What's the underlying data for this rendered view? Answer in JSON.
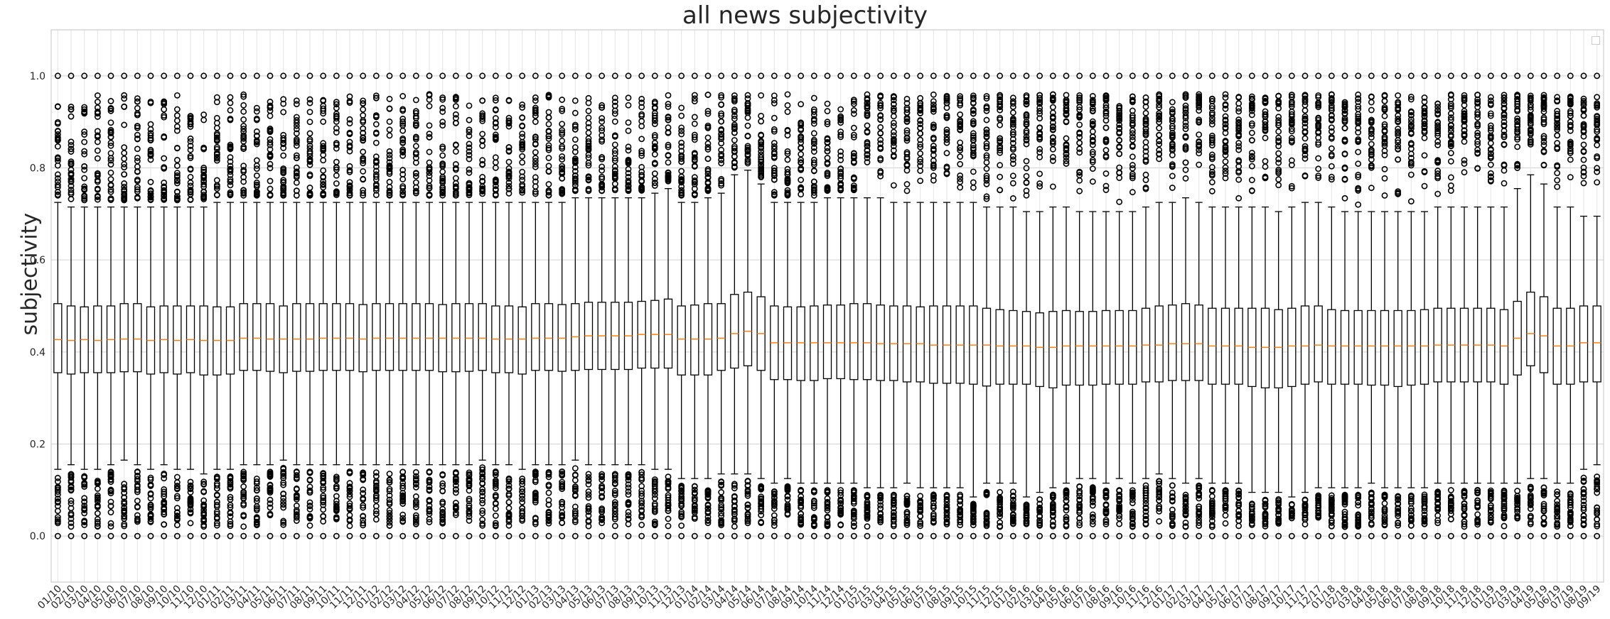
{
  "chart_data": {
    "type": "boxplot",
    "title": "all news subjectivity",
    "xlabel": "",
    "ylabel": "subjectivity",
    "ylim": [
      -0.1,
      1.1
    ],
    "yticks": [
      "0.0",
      "0.2",
      "0.4",
      "0.6",
      "0.8",
      "1.0"
    ],
    "grid": true,
    "legend": "top-right, empty",
    "colors": {
      "box": "#000000",
      "median": "#ff7f0e",
      "grid": "#d3d3d3",
      "axes_edge": "#cccccc",
      "text": "#262626"
    },
    "categories": [
      "01/10",
      "02/10",
      "03/10",
      "04/10",
      "05/10",
      "06/10",
      "07/10",
      "08/10",
      "09/10",
      "10/10",
      "11/10",
      "12/10",
      "01/11",
      "02/11",
      "03/11",
      "04/11",
      "05/11",
      "06/11",
      "07/11",
      "08/11",
      "09/11",
      "10/11",
      "11/11",
      "12/11",
      "01/12",
      "02/12",
      "03/12",
      "04/12",
      "05/12",
      "06/12",
      "07/12",
      "08/12",
      "09/12",
      "10/12",
      "11/12",
      "12/12",
      "01/13",
      "02/13",
      "03/13",
      "04/13",
      "05/13",
      "06/13",
      "07/13",
      "08/13",
      "09/13",
      "10/13",
      "11/13",
      "12/13",
      "01/14",
      "02/14",
      "03/14",
      "04/14",
      "05/14",
      "06/14",
      "07/14",
      "08/14",
      "09/14",
      "10/14",
      "11/14",
      "12/14",
      "01/15",
      "02/15",
      "03/15",
      "04/15",
      "05/15",
      "06/15",
      "07/15",
      "08/15",
      "09/15",
      "10/15",
      "11/15",
      "12/15",
      "01/16",
      "02/16",
      "03/16",
      "04/16",
      "05/16",
      "06/16",
      "07/16",
      "08/16",
      "09/16",
      "10/16",
      "11/16",
      "12/16",
      "01/17",
      "02/17",
      "03/17",
      "04/17",
      "05/17",
      "06/17",
      "07/17",
      "08/17",
      "09/17",
      "10/17",
      "11/17",
      "12/17",
      "01/18",
      "02/18",
      "03/18",
      "04/18",
      "05/18",
      "06/18",
      "07/18",
      "08/18",
      "09/18",
      "10/18",
      "11/18",
      "12/18",
      "01/19",
      "02/19",
      "03/19",
      "04/19",
      "05/19",
      "06/19",
      "07/19",
      "08/19",
      "09/19"
    ],
    "medians": [
      0.427,
      0.425,
      0.427,
      0.425,
      0.427,
      0.428,
      0.428,
      0.425,
      0.427,
      0.425,
      0.427,
      0.425,
      0.425,
      0.425,
      0.43,
      0.43,
      0.428,
      0.428,
      0.428,
      0.428,
      0.43,
      0.43,
      0.43,
      0.428,
      0.43,
      0.43,
      0.43,
      0.43,
      0.43,
      0.43,
      0.43,
      0.43,
      0.43,
      0.428,
      0.428,
      0.428,
      0.43,
      0.43,
      0.43,
      0.433,
      0.435,
      0.435,
      0.435,
      0.435,
      0.438,
      0.438,
      0.438,
      0.428,
      0.428,
      0.428,
      0.43,
      0.44,
      0.445,
      0.44,
      0.42,
      0.42,
      0.42,
      0.42,
      0.42,
      0.42,
      0.42,
      0.42,
      0.418,
      0.418,
      0.418,
      0.418,
      0.415,
      0.415,
      0.415,
      0.415,
      0.415,
      0.413,
      0.413,
      0.413,
      0.41,
      0.41,
      0.413,
      0.413,
      0.413,
      0.413,
      0.413,
      0.413,
      0.415,
      0.415,
      0.418,
      0.418,
      0.418,
      0.413,
      0.413,
      0.413,
      0.41,
      0.41,
      0.41,
      0.413,
      0.413,
      0.415,
      0.413,
      0.413,
      0.413,
      0.413,
      0.413,
      0.413,
      0.413,
      0.413,
      0.415,
      0.415,
      0.415,
      0.415,
      0.415,
      0.413,
      0.43,
      0.44,
      0.435,
      0.413,
      0.413,
      0.42,
      0.42
    ],
    "q1": [
      0.355,
      0.352,
      0.355,
      0.355,
      0.355,
      0.357,
      0.357,
      0.352,
      0.355,
      0.352,
      0.355,
      0.35,
      0.35,
      0.352,
      0.36,
      0.36,
      0.358,
      0.355,
      0.358,
      0.358,
      0.36,
      0.36,
      0.36,
      0.357,
      0.36,
      0.36,
      0.36,
      0.36,
      0.36,
      0.357,
      0.357,
      0.358,
      0.36,
      0.355,
      0.355,
      0.352,
      0.36,
      0.36,
      0.358,
      0.36,
      0.362,
      0.362,
      0.362,
      0.362,
      0.365,
      0.365,
      0.365,
      0.35,
      0.35,
      0.35,
      0.36,
      0.365,
      0.37,
      0.36,
      0.34,
      0.34,
      0.338,
      0.338,
      0.342,
      0.342,
      0.34,
      0.34,
      0.338,
      0.338,
      0.335,
      0.335,
      0.332,
      0.332,
      0.332,
      0.33,
      0.326,
      0.33,
      0.33,
      0.33,
      0.325,
      0.322,
      0.328,
      0.328,
      0.328,
      0.33,
      0.33,
      0.33,
      0.335,
      0.335,
      0.338,
      0.338,
      0.338,
      0.33,
      0.33,
      0.33,
      0.325,
      0.322,
      0.322,
      0.325,
      0.33,
      0.335,
      0.33,
      0.33,
      0.33,
      0.328,
      0.328,
      0.325,
      0.328,
      0.33,
      0.335,
      0.335,
      0.335,
      0.335,
      0.335,
      0.33,
      0.35,
      0.37,
      0.355,
      0.33,
      0.33,
      0.335,
      0.335
    ],
    "q3": [
      0.505,
      0.5,
      0.498,
      0.5,
      0.5,
      0.505,
      0.505,
      0.498,
      0.5,
      0.5,
      0.5,
      0.5,
      0.498,
      0.498,
      0.505,
      0.505,
      0.505,
      0.5,
      0.505,
      0.505,
      0.505,
      0.505,
      0.505,
      0.503,
      0.505,
      0.505,
      0.505,
      0.505,
      0.505,
      0.503,
      0.505,
      0.505,
      0.505,
      0.5,
      0.5,
      0.498,
      0.505,
      0.505,
      0.503,
      0.505,
      0.508,
      0.508,
      0.508,
      0.508,
      0.51,
      0.512,
      0.515,
      0.5,
      0.502,
      0.505,
      0.505,
      0.525,
      0.53,
      0.52,
      0.5,
      0.498,
      0.498,
      0.5,
      0.502,
      0.502,
      0.505,
      0.505,
      0.502,
      0.5,
      0.5,
      0.498,
      0.5,
      0.5,
      0.5,
      0.5,
      0.495,
      0.492,
      0.49,
      0.488,
      0.485,
      0.488,
      0.49,
      0.488,
      0.488,
      0.49,
      0.49,
      0.49,
      0.495,
      0.5,
      0.502,
      0.505,
      0.502,
      0.495,
      0.495,
      0.495,
      0.495,
      0.495,
      0.492,
      0.495,
      0.5,
      0.5,
      0.492,
      0.49,
      0.49,
      0.49,
      0.49,
      0.49,
      0.49,
      0.492,
      0.495,
      0.495,
      0.495,
      0.495,
      0.495,
      0.492,
      0.51,
      0.53,
      0.52,
      0.495,
      0.495,
      0.5,
      0.5
    ],
    "whisker_low_min": 0.0,
    "whisker_high_max": 1.0,
    "upper_outlier_start": [
      0.74,
      0.73,
      0.73,
      0.73,
      0.73,
      0.73,
      0.73,
      0.73,
      0.73,
      0.73,
      0.73,
      0.73,
      0.74,
      0.74,
      0.74,
      0.74,
      0.74,
      0.74,
      0.74,
      0.74,
      0.74,
      0.74,
      0.74,
      0.74,
      0.74,
      0.74,
      0.74,
      0.74,
      0.74,
      0.74,
      0.74,
      0.74,
      0.74,
      0.74,
      0.74,
      0.74,
      0.74,
      0.74,
      0.74,
      0.75,
      0.75,
      0.75,
      0.75,
      0.75,
      0.75,
      0.76,
      0.77,
      0.74,
      0.74,
      0.75,
      0.76,
      0.8,
      0.81,
      0.78,
      0.74,
      0.74,
      0.74,
      0.74,
      0.75,
      0.75,
      0.75,
      0.75,
      0.75,
      0.74,
      0.74,
      0.74,
      0.74,
      0.74,
      0.74,
      0.74,
      0.73,
      0.73,
      0.73,
      0.72,
      0.72,
      0.73,
      0.73,
      0.72,
      0.72,
      0.72,
      0.72,
      0.72,
      0.73,
      0.74,
      0.74,
      0.75,
      0.74,
      0.73,
      0.73,
      0.73,
      0.73,
      0.73,
      0.72,
      0.73,
      0.74,
      0.74,
      0.73,
      0.72,
      0.72,
      0.72,
      0.72,
      0.72,
      0.72,
      0.72,
      0.73,
      0.73,
      0.73,
      0.73,
      0.73,
      0.73,
      0.77,
      0.8,
      0.78,
      0.73,
      0.73,
      0.71,
      0.71
    ],
    "lower_outlier_end": [
      0.13,
      0.14,
      0.13,
      0.13,
      0.14,
      0.15,
      0.14,
      0.13,
      0.14,
      0.13,
      0.13,
      0.12,
      0.13,
      0.13,
      0.14,
      0.14,
      0.14,
      0.15,
      0.14,
      0.14,
      0.14,
      0.14,
      0.14,
      0.14,
      0.14,
      0.14,
      0.14,
      0.14,
      0.14,
      0.14,
      0.14,
      0.14,
      0.15,
      0.14,
      0.14,
      0.13,
      0.14,
      0.14,
      0.14,
      0.15,
      0.14,
      0.14,
      0.14,
      0.14,
      0.14,
      0.13,
      0.13,
      0.11,
      0.11,
      0.11,
      0.12,
      0.12,
      0.12,
      0.11,
      0.1,
      0.11,
      0.1,
      0.1,
      0.1,
      0.1,
      0.1,
      0.09,
      0.09,
      0.09,
      0.1,
      0.09,
      0.09,
      0.09,
      0.09,
      0.07,
      0.1,
      0.1,
      0.1,
      0.07,
      0.08,
      0.09,
      0.1,
      0.11,
      0.11,
      0.1,
      0.11,
      0.1,
      0.11,
      0.12,
      0.11,
      0.1,
      0.11,
      0.1,
      0.1,
      0.1,
      0.08,
      0.08,
      0.08,
      0.07,
      0.08,
      0.09,
      0.09,
      0.09,
      0.09,
      0.1,
      0.09,
      0.09,
      0.09,
      0.09,
      0.1,
      0.1,
      0.1,
      0.1,
      0.1,
      0.1,
      0.1,
      0.11,
      0.11,
      0.1,
      0.1,
      0.13,
      0.14
    ]
  }
}
